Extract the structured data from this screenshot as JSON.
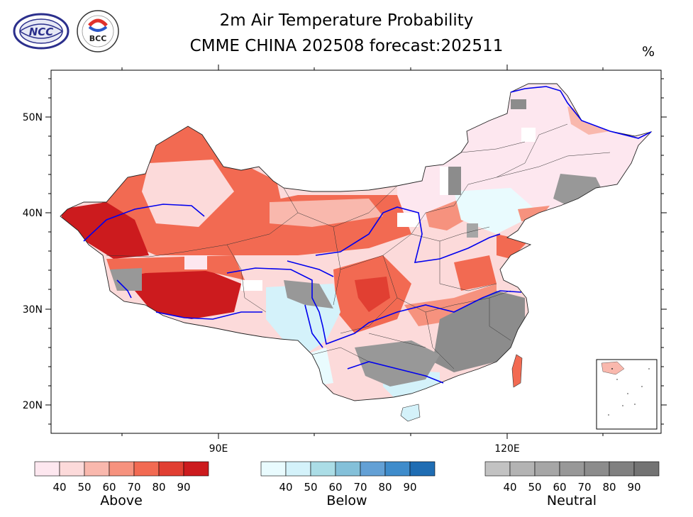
{
  "header": {
    "title_line1": "2m Air Temperature Probability",
    "title_line2": "CMME CHINA 202508 forecast:202511",
    "unit": "%",
    "logo_left": "NCC",
    "logo_right": "BCC"
  },
  "axes": {
    "lat_labels": [
      "50N",
      "40N",
      "30N",
      "20N"
    ],
    "lon_labels": [
      "90E",
      "120E"
    ]
  },
  "legends": [
    {
      "name": "Above",
      "ticks": [
        "40",
        "50",
        "60",
        "70",
        "80",
        "90"
      ],
      "colors": [
        "#fde7ef",
        "#fcdada",
        "#f9b8ad",
        "#f6927e",
        "#f26a52",
        "#e13f32",
        "#cc1b1e"
      ]
    },
    {
      "name": "Below",
      "ticks": [
        "40",
        "50",
        "60",
        "70",
        "80",
        "90"
      ],
      "colors": [
        "#e9fbfe",
        "#d4f2fa",
        "#abdde6",
        "#84c0d9",
        "#63a0d5",
        "#3f8ccb",
        "#1f6db3"
      ]
    },
    {
      "name": "Neutral",
      "ticks": [
        "40",
        "50",
        "60",
        "70",
        "80",
        "90"
      ],
      "colors": [
        "#c2c2c2",
        "#b3b3b3",
        "#a6a6a6",
        "#989898",
        "#8c8c8c",
        "#808080",
        "#737373"
      ]
    }
  ]
}
